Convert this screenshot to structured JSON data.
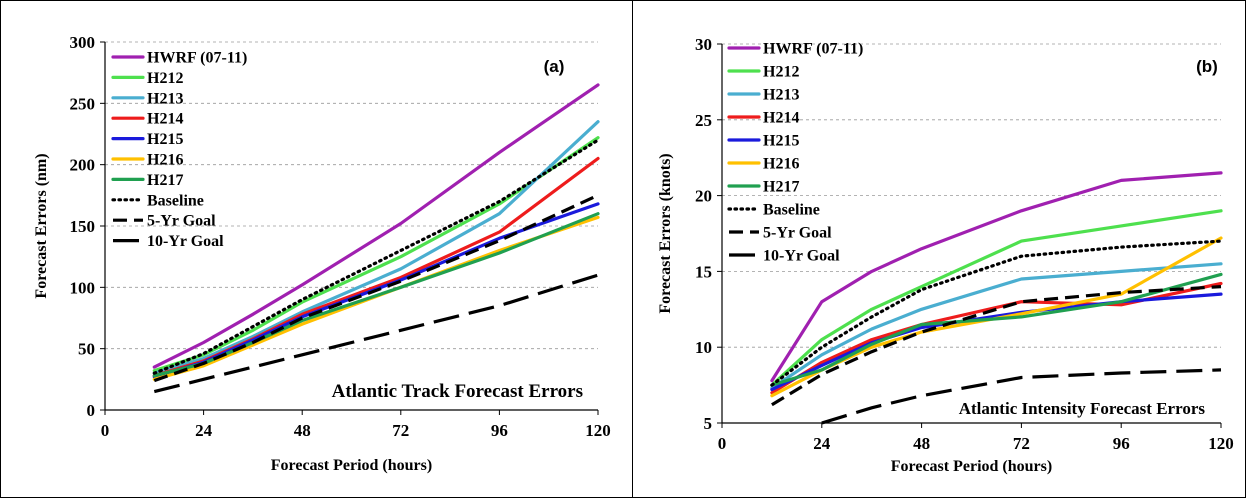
{
  "chart_data": [
    {
      "type": "line",
      "panel_label": "(a)",
      "annotation": "Atlantic Track Forecast Errors",
      "xlabel": "Forecast Period (hours)",
      "ylabel": "Forecast Errors (nm)",
      "xlim": [
        0,
        120
      ],
      "ylim": [
        0,
        300
      ],
      "xticks": [
        0,
        24,
        48,
        72,
        96,
        120
      ],
      "yticks": [
        0,
        50,
        100,
        150,
        200,
        250,
        300
      ],
      "grid": "horizontal dashed",
      "legend": "top-left",
      "series": [
        {
          "name": "HWRF (07-11)",
          "color": "#a020b0",
          "dash": "solid",
          "x": [
            12,
            24,
            36,
            48,
            72,
            96,
            120
          ],
          "y": [
            35,
            55,
            78,
            102,
            152,
            210,
            265
          ]
        },
        {
          "name": "H212",
          "color": "#4ee04e",
          "dash": "solid",
          "x": [
            12,
            24,
            36,
            48,
            72,
            96,
            120
          ],
          "y": [
            32,
            45,
            65,
            88,
            125,
            168,
            222
          ]
        },
        {
          "name": "H213",
          "color": "#4aaed0",
          "dash": "solid",
          "x": [
            12,
            24,
            36,
            48,
            72,
            96,
            120
          ],
          "y": [
            30,
            42,
            60,
            80,
            115,
            160,
            235
          ]
        },
        {
          "name": "H214",
          "color": "#ee1c1c",
          "dash": "solid",
          "x": [
            12,
            24,
            36,
            48,
            72,
            96,
            120
          ],
          "y": [
            28,
            40,
            58,
            78,
            108,
            145,
            205
          ]
        },
        {
          "name": "H215",
          "color": "#1a1adc",
          "dash": "solid",
          "x": [
            12,
            24,
            36,
            48,
            72,
            96,
            120
          ],
          "y": [
            27,
            39,
            57,
            76,
            106,
            140,
            168
          ]
        },
        {
          "name": "H216",
          "color": "#ffc000",
          "dash": "solid",
          "x": [
            12,
            24,
            36,
            48,
            72,
            96,
            120
          ],
          "y": [
            25,
            36,
            53,
            70,
            100,
            130,
            157
          ]
        },
        {
          "name": "H217",
          "color": "#20a050",
          "dash": "solid",
          "x": [
            12,
            24,
            36,
            48,
            72,
            96,
            120
          ],
          "y": [
            28,
            38,
            55,
            73,
            100,
            128,
            160
          ]
        },
        {
          "name": "Baseline",
          "color": "#000000",
          "dash": "dotted",
          "x": [
            12,
            24,
            36,
            48,
            72,
            96,
            120
          ],
          "y": [
            30,
            46,
            68,
            90,
            130,
            170,
            220
          ]
        },
        {
          "name": "5-Yr Goal",
          "color": "#000000",
          "dash": "dashed",
          "x": [
            12,
            24,
            36,
            48,
            72,
            96,
            120
          ],
          "y": [
            24,
            38,
            55,
            75,
            105,
            138,
            175
          ]
        },
        {
          "name": "10-Yr Goal",
          "color": "#000000",
          "dash": "longdash",
          "x": [
            12,
            24,
            36,
            48,
            72,
            96,
            120
          ],
          "y": [
            15,
            25,
            35,
            45,
            65,
            85,
            110
          ]
        }
      ]
    },
    {
      "type": "line",
      "panel_label": "(b)",
      "annotation": "Atlantic Intensity Forecast Errors",
      "xlabel": "Forecast Period (hours)",
      "ylabel": "Forecast Errors (knots)",
      "xlim": [
        0,
        120
      ],
      "ylim": [
        5,
        30
      ],
      "xticks": [
        0,
        24,
        48,
        72,
        96,
        120
      ],
      "yticks": [
        5,
        10,
        15,
        20,
        25,
        30
      ],
      "grid": "horizontal dashed",
      "legend": "top-left",
      "series": [
        {
          "name": "HWRF (07-11)",
          "color": "#a020b0",
          "dash": "solid",
          "x": [
            12,
            24,
            36,
            48,
            72,
            96,
            120
          ],
          "y": [
            7.8,
            13.0,
            15.0,
            16.5,
            19.0,
            21.0,
            21.5
          ]
        },
        {
          "name": "H212",
          "color": "#4ee04e",
          "dash": "solid",
          "x": [
            12,
            24,
            36,
            48,
            72,
            96,
            120
          ],
          "y": [
            7.5,
            10.5,
            12.5,
            14.0,
            17.0,
            18.0,
            19.0
          ]
        },
        {
          "name": "H213",
          "color": "#4aaed0",
          "dash": "solid",
          "x": [
            12,
            24,
            36,
            48,
            72,
            96,
            120
          ],
          "y": [
            7.3,
            9.5,
            11.2,
            12.5,
            14.5,
            15.0,
            15.5
          ]
        },
        {
          "name": "H214",
          "color": "#ee1c1c",
          "dash": "solid",
          "x": [
            12,
            24,
            36,
            48,
            72,
            96,
            120
          ],
          "y": [
            7.0,
            9.0,
            10.5,
            11.5,
            13.0,
            12.8,
            14.2
          ]
        },
        {
          "name": "H215",
          "color": "#1a1adc",
          "dash": "solid",
          "x": [
            12,
            24,
            36,
            48,
            72,
            96,
            120
          ],
          "y": [
            7.2,
            8.8,
            10.3,
            11.3,
            12.3,
            13.0,
            13.5
          ]
        },
        {
          "name": "H216",
          "color": "#ffc000",
          "dash": "solid",
          "x": [
            12,
            24,
            36,
            48,
            72,
            96,
            120
          ],
          "y": [
            6.8,
            8.5,
            10.0,
            11.0,
            12.2,
            13.5,
            17.2
          ]
        },
        {
          "name": "H217",
          "color": "#20a050",
          "dash": "solid",
          "x": [
            12,
            24,
            36,
            48,
            72,
            96,
            120
          ],
          "y": [
            7.5,
            8.5,
            10.2,
            11.5,
            12.0,
            13.0,
            14.8
          ]
        },
        {
          "name": "Baseline",
          "color": "#000000",
          "dash": "dotted",
          "x": [
            12,
            24,
            36,
            48,
            72,
            96,
            120
          ],
          "y": [
            7.5,
            10.0,
            12.0,
            13.8,
            16.0,
            16.6,
            17.0
          ]
        },
        {
          "name": "5-Yr Goal",
          "color": "#000000",
          "dash": "dashed",
          "x": [
            12,
            24,
            36,
            48,
            72,
            96,
            120
          ],
          "y": [
            6.2,
            8.2,
            9.7,
            11.0,
            13.0,
            13.6,
            14.0
          ]
        },
        {
          "name": "10-Yr Goal",
          "color": "#000000",
          "dash": "longdash",
          "x": [
            24,
            36,
            48,
            72,
            96,
            120
          ],
          "y": [
            5.0,
            6.0,
            6.8,
            8.0,
            8.3,
            8.5
          ]
        }
      ]
    }
  ]
}
